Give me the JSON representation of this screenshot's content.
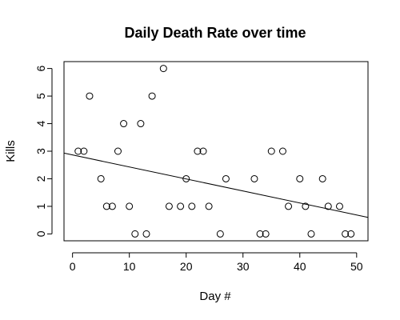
{
  "chart_data": {
    "type": "scatter",
    "title": "Daily Death Rate over time",
    "xlabel": "Day #",
    "ylabel": "Kills",
    "xlim": [
      -1.5,
      52
    ],
    "ylim": [
      -0.25,
      6.25
    ],
    "xticks": [
      0,
      10,
      20,
      30,
      40,
      50
    ],
    "yticks": [
      0,
      1,
      2,
      3,
      4,
      5,
      6
    ],
    "grid": false,
    "points": [
      {
        "x": 1,
        "y": 3
      },
      {
        "x": 2,
        "y": 3
      },
      {
        "x": 3,
        "y": 5
      },
      {
        "x": 5,
        "y": 2
      },
      {
        "x": 6,
        "y": 1
      },
      {
        "x": 7,
        "y": 1
      },
      {
        "x": 8,
        "y": 3
      },
      {
        "x": 9,
        "y": 4
      },
      {
        "x": 10,
        "y": 1
      },
      {
        "x": 11,
        "y": 0
      },
      {
        "x": 12,
        "y": 4
      },
      {
        "x": 13,
        "y": 0
      },
      {
        "x": 14,
        "y": 5
      },
      {
        "x": 16,
        "y": 6
      },
      {
        "x": 17,
        "y": 1
      },
      {
        "x": 19,
        "y": 1
      },
      {
        "x": 20,
        "y": 2
      },
      {
        "x": 21,
        "y": 1
      },
      {
        "x": 22,
        "y": 3
      },
      {
        "x": 23,
        "y": 3
      },
      {
        "x": 24,
        "y": 1
      },
      {
        "x": 26,
        "y": 0
      },
      {
        "x": 27,
        "y": 2
      },
      {
        "x": 32,
        "y": 2
      },
      {
        "x": 33,
        "y": 0
      },
      {
        "x": 34,
        "y": 0
      },
      {
        "x": 35,
        "y": 3
      },
      {
        "x": 37,
        "y": 3
      },
      {
        "x": 38,
        "y": 1
      },
      {
        "x": 40,
        "y": 2
      },
      {
        "x": 41,
        "y": 1
      },
      {
        "x": 42,
        "y": 0
      },
      {
        "x": 44,
        "y": 2
      },
      {
        "x": 45,
        "y": 1
      },
      {
        "x": 47,
        "y": 1
      },
      {
        "x": 48,
        "y": 0
      },
      {
        "x": 49,
        "y": 0
      }
    ],
    "trend_line": {
      "x0": -1.5,
      "y0": 2.93,
      "x1": 52,
      "y1": 0.6
    }
  }
}
